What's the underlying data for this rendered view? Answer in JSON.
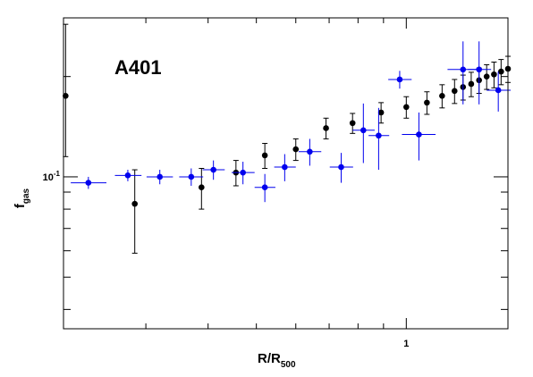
{
  "chart_data": {
    "type": "scatter",
    "title": "A401",
    "xlabel": "R/R",
    "xlabel_sub": "500",
    "ylabel": "f",
    "ylabel_sub": "gas",
    "x_tick_labels": [
      {
        "value": 1,
        "label": "1"
      }
    ],
    "y_tick_labels": [
      {
        "value": 0.1,
        "label": "10",
        "exp": "-1"
      }
    ],
    "xscale": "log",
    "yscale": "log",
    "xlim": [
      0.205,
      1.6
    ],
    "ylim": [
      0.035,
      0.3
    ],
    "grid": false,
    "colors": {
      "black_series": "#000000",
      "blue_series": "#0000ee"
    },
    "series": [
      {
        "color": "#000000",
        "points": [
          {
            "x": 0.207,
            "y": 0.175,
            "xerr": [
              0.0,
              0.0
            ],
            "yerr": [
              0.06,
              0.112
            ]
          },
          {
            "x": 0.285,
            "y": 0.083,
            "xerr": [
              0.0,
              0.0
            ],
            "yerr": [
              0.024,
              0.022
            ]
          },
          {
            "x": 0.388,
            "y": 0.093,
            "xerr": [
              0.0,
              0.0
            ],
            "yerr": [
              0.013,
              0.013
            ]
          },
          {
            "x": 0.455,
            "y": 0.103,
            "xerr": [
              0.0,
              0.0
            ],
            "yerr": [
              0.009,
              0.009
            ]
          },
          {
            "x": 0.52,
            "y": 0.116,
            "xerr": [
              0.0,
              0.0
            ],
            "yerr": [
              0.01,
              0.01
            ]
          },
          {
            "x": 0.6,
            "y": 0.121,
            "xerr": [
              0.0,
              0.0
            ],
            "yerr": [
              0.009,
              0.009
            ]
          },
          {
            "x": 0.69,
            "y": 0.14,
            "xerr": [
              0.0,
              0.0
            ],
            "yerr": [
              0.01,
              0.01
            ]
          },
          {
            "x": 0.78,
            "y": 0.145,
            "xerr": [
              0.0,
              0.0
            ],
            "yerr": [
              0.01,
              0.01
            ]
          },
          {
            "x": 0.89,
            "y": 0.156,
            "xerr": [
              0.0,
              0.0
            ],
            "yerr": [
              0.011,
              0.011
            ]
          },
          {
            "x": 1.0,
            "y": 0.162,
            "xerr": [
              0.0,
              0.0
            ],
            "yerr": [
              0.012,
              0.012
            ]
          },
          {
            "x": 1.1,
            "y": 0.167,
            "xerr": [
              0.0,
              0.0
            ],
            "yerr": [
              0.013,
              0.013
            ]
          },
          {
            "x": 1.18,
            "y": 0.175,
            "xerr": [
              0.0,
              0.0
            ],
            "yerr": [
              0.014,
              0.014
            ]
          },
          {
            "x": 1.25,
            "y": 0.181,
            "xerr": [
              0.0,
              0.0
            ],
            "yerr": [
              0.015,
              0.015
            ]
          },
          {
            "x": 1.3,
            "y": 0.186,
            "xerr": [
              0.0,
              0.0
            ],
            "yerr": [
              0.016,
              0.016
            ]
          },
          {
            "x": 1.35,
            "y": 0.19,
            "xerr": [
              0.0,
              0.0
            ],
            "yerr": [
              0.016,
              0.016
            ]
          },
          {
            "x": 1.4,
            "y": 0.195,
            "xerr": [
              0.0,
              0.0
            ],
            "yerr": [
              0.017,
              0.017
            ]
          },
          {
            "x": 1.45,
            "y": 0.2,
            "xerr": [
              0.0,
              0.0
            ],
            "yerr": [
              0.017,
              0.017
            ]
          },
          {
            "x": 1.5,
            "y": 0.203,
            "xerr": [
              0.0,
              0.0
            ],
            "yerr": [
              0.018,
              0.018
            ]
          },
          {
            "x": 1.55,
            "y": 0.207,
            "xerr": [
              0.0,
              0.0
            ],
            "yerr": [
              0.018,
              0.018
            ]
          },
          {
            "x": 1.6,
            "y": 0.211,
            "xerr": [
              0.0,
              0.0
            ],
            "yerr": [
              0.019,
              0.019
            ]
          }
        ]
      },
      {
        "color": "#0000ee",
        "points": [
          {
            "x": 0.23,
            "y": 0.096,
            "xerr": [
              0.018,
              0.02
            ],
            "yerr": [
              0.004,
              0.004
            ]
          },
          {
            "x": 0.276,
            "y": 0.101,
            "xerr": [
              0.016,
              0.018
            ],
            "yerr": [
              0.004,
              0.004
            ]
          },
          {
            "x": 0.32,
            "y": 0.1,
            "xerr": [
              0.019,
              0.02
            ],
            "yerr": [
              0.005,
              0.005
            ]
          },
          {
            "x": 0.37,
            "y": 0.1,
            "xerr": [
              0.02,
              0.021
            ],
            "yerr": [
              0.006,
              0.006
            ]
          },
          {
            "x": 0.41,
            "y": 0.105,
            "xerr": [
              0.02,
              0.022
            ],
            "yerr": [
              0.007,
              0.007
            ]
          },
          {
            "x": 0.47,
            "y": 0.103,
            "xerr": [
              0.024,
              0.026
            ],
            "yerr": [
              0.008,
              0.008
            ]
          },
          {
            "x": 0.52,
            "y": 0.093,
            "xerr": [
              0.024,
              0.026
            ],
            "yerr": [
              0.009,
              0.009
            ]
          },
          {
            "x": 0.57,
            "y": 0.107,
            "xerr": [
              0.027,
              0.03
            ],
            "yerr": [
              0.01,
              0.01
            ]
          },
          {
            "x": 0.64,
            "y": 0.119,
            "xerr": [
              0.032,
              0.035
            ],
            "yerr": [
              0.011,
              0.011
            ]
          },
          {
            "x": 0.74,
            "y": 0.107,
            "xerr": [
              0.038,
              0.042
            ],
            "yerr": [
              0.011,
              0.011
            ]
          },
          {
            "x": 0.82,
            "y": 0.138,
            "xerr": [
              0.04,
              0.044
            ],
            "yerr": [
              0.028,
              0.028
            ]
          },
          {
            "x": 0.88,
            "y": 0.133,
            "xerr": [
              0.04,
              0.044
            ],
            "yerr": [
              0.028,
              0.028
            ]
          },
          {
            "x": 0.97,
            "y": 0.196,
            "xerr": [
              0.05,
              0.055
            ],
            "yerr": [
              0.012,
              0.012
            ]
          },
          {
            "x": 1.06,
            "y": 0.134,
            "xerr": [
              0.08,
              0.085
            ],
            "yerr": [
              0.022,
              0.022
            ]
          },
          {
            "x": 1.3,
            "y": 0.21,
            "xerr": [
              0.09,
              0.1
            ],
            "yerr": [
              0.045,
              0.045
            ]
          },
          {
            "x": 1.4,
            "y": 0.21,
            "xerr": [
              0.07,
              0.08
            ],
            "yerr": [
              0.045,
              0.045
            ]
          },
          {
            "x": 1.53,
            "y": 0.182,
            "xerr": [
              0.08,
              0.09
            ],
            "yerr": [
              0.025,
              0.025
            ]
          }
        ]
      }
    ]
  }
}
